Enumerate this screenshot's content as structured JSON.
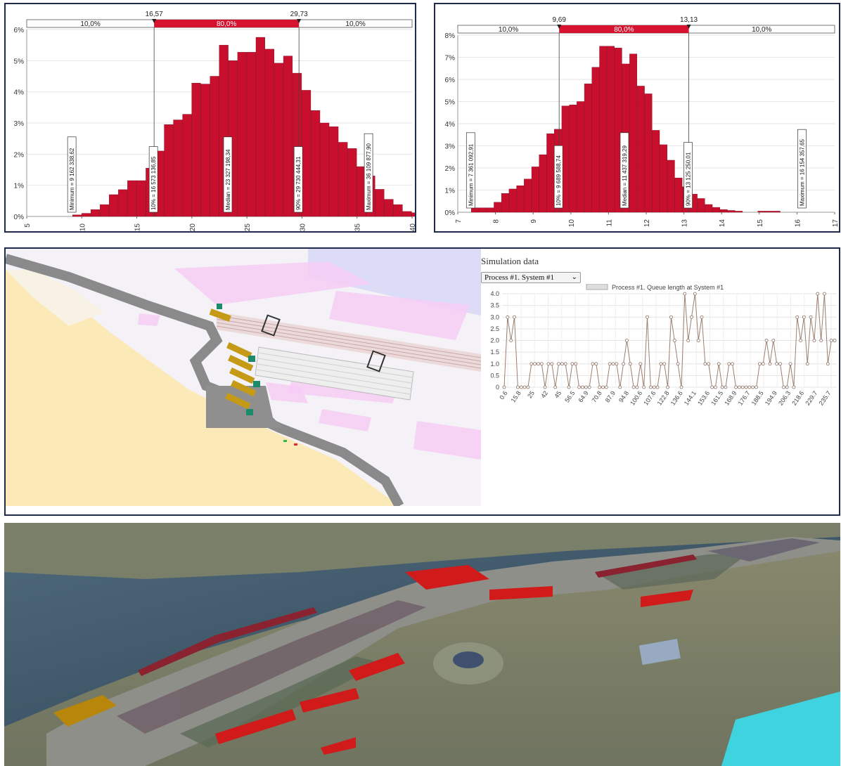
{
  "colors": {
    "bar": "#c8102e",
    "bar_dark": "#7a0a1a",
    "band_mid": "#d7122f",
    "queue_line": "#9b8070",
    "frame": "#1f2a4a"
  },
  "chart_data": [
    {
      "type": "bar",
      "title": "",
      "xlim": [
        5,
        40
      ],
      "ylim": [
        0,
        6
      ],
      "x_ticks": [
        "5",
        "10",
        "15",
        "20",
        "25",
        "30",
        "35",
        "40"
      ],
      "y_ticks": [
        "0%",
        "1%",
        "2%",
        "3%",
        "4%",
        "5%",
        "6%"
      ],
      "bin_width": 0.833,
      "bin_start": 9.16,
      "values": [
        0.05,
        0.1,
        0.22,
        0.38,
        0.7,
        0.86,
        1.15,
        1.15,
        1.55,
        2.1,
        2.95,
        3.1,
        3.28,
        4.28,
        4.25,
        4.5,
        5.5,
        5.0,
        5.27,
        5.27,
        5.75,
        5.37,
        4.92,
        5.15,
        4.6,
        4.05,
        3.4,
        3.0,
        2.88,
        2.38,
        2.18,
        1.6,
        1.3,
        0.87,
        0.55,
        0.38,
        0.16,
        0.12
      ],
      "band": {
        "left_value": "16,57",
        "right_value": "29,73",
        "left_pct": "10,0%",
        "mid_pct": "80,0%",
        "right_pct": "10,0%"
      },
      "markers": [
        {
          "x": 9.16,
          "label": "Minimum = 9 162 338,62"
        },
        {
          "x": 16.57,
          "label": "10% = 16 573 136,85"
        },
        {
          "x": 23.33,
          "label": "Median = 23 327 198,34"
        },
        {
          "x": 29.73,
          "label": "90% = 29 730 444,31"
        },
        {
          "x": 36.11,
          "label": "Maximum = 36 109 877,90"
        }
      ]
    },
    {
      "type": "bar",
      "title": "",
      "xlim": [
        7,
        17
      ],
      "ylim": [
        0,
        8
      ],
      "x_ticks": [
        "7",
        "8",
        "9",
        "10",
        "11",
        "12",
        "13",
        "14",
        "15",
        "16",
        "17"
      ],
      "y_ticks": [
        "0%",
        "1%",
        "2%",
        "3%",
        "4%",
        "5%",
        "6%",
        "7%",
        "8%"
      ],
      "bin_width": 0.2,
      "bin_start": 7.36,
      "values": [
        0.2,
        0.2,
        0.2,
        0.45,
        0.85,
        1.05,
        1.2,
        1.5,
        2.05,
        2.6,
        3.55,
        3.75,
        4.8,
        4.85,
        5.0,
        5.8,
        6.55,
        7.5,
        7.5,
        7.42,
        6.7,
        7.15,
        5.7,
        5.35,
        3.7,
        3.05,
        2.35,
        1.55,
        1.15,
        0.82,
        0.62,
        0.35,
        0.22,
        0.12,
        0.08,
        0.05,
        0.0,
        0.0,
        0.05,
        0.05,
        0.05
      ],
      "band": {
        "left_value": "9,69",
        "right_value": "13,13",
        "left_pct": "10,0%",
        "mid_pct": "80,0%",
        "right_pct": "10,0%"
      },
      "markers": [
        {
          "x": 7.36,
          "label": "Minimum = 7 361 092,91"
        },
        {
          "x": 9.69,
          "label": "10% = 9 689 588,74"
        },
        {
          "x": 11.44,
          "label": "Median = 11 437 319,29"
        },
        {
          "x": 13.13,
          "label": "90% = 13 125 250,01"
        },
        {
          "x": 16.15,
          "label": "Maximum = 16 154 357,65"
        }
      ]
    },
    {
      "type": "line",
      "title": "Simulation data",
      "legend": "Process #1. Queue length at System #1",
      "ylim": [
        0,
        4
      ],
      "y_ticks": [
        "0",
        "0.5",
        "1.0",
        "1.5",
        "2.0",
        "2.5",
        "3.0",
        "3.5",
        "4.0"
      ],
      "x_tick_labels": [
        "0.6",
        "15.8",
        "25",
        "42",
        "45",
        "56.5",
        "64.9",
        "70.8",
        "87.9",
        "94.8",
        "100.6",
        "107.6",
        "122.8",
        "136.6",
        "144.1",
        "153.6",
        "161.5",
        "168.9",
        "176.7",
        "188.5",
        "194.9",
        "206.3",
        "218.6",
        "229.7",
        "235.7"
      ],
      "series": [
        {
          "values": [
            0,
            3,
            2,
            3,
            0,
            0,
            0,
            0,
            1,
            1,
            1,
            1,
            0,
            1,
            1,
            0,
            1,
            1,
            1,
            0,
            1,
            1,
            0,
            0,
            0,
            0,
            1,
            1,
            0,
            0,
            0,
            1,
            1,
            1,
            0,
            1,
            2,
            1,
            0,
            0,
            1,
            0,
            3,
            0,
            0,
            0,
            1,
            1,
            0,
            3,
            2,
            1,
            0,
            4,
            2,
            3,
            4,
            2,
            3,
            1,
            1,
            0,
            0,
            1,
            0,
            0,
            1,
            1,
            0,
            0,
            0,
            0,
            0,
            0,
            0,
            1,
            1,
            2,
            1,
            2,
            1,
            1,
            0,
            0,
            1,
            0,
            3,
            2,
            3,
            1,
            3,
            2,
            4,
            2,
            4,
            1,
            2,
            2
          ]
        }
      ]
    }
  ],
  "simulation": {
    "title": "Simulation data",
    "select_value": "Process #1. System #1",
    "legend": "Process #1. Queue length at System #1"
  }
}
